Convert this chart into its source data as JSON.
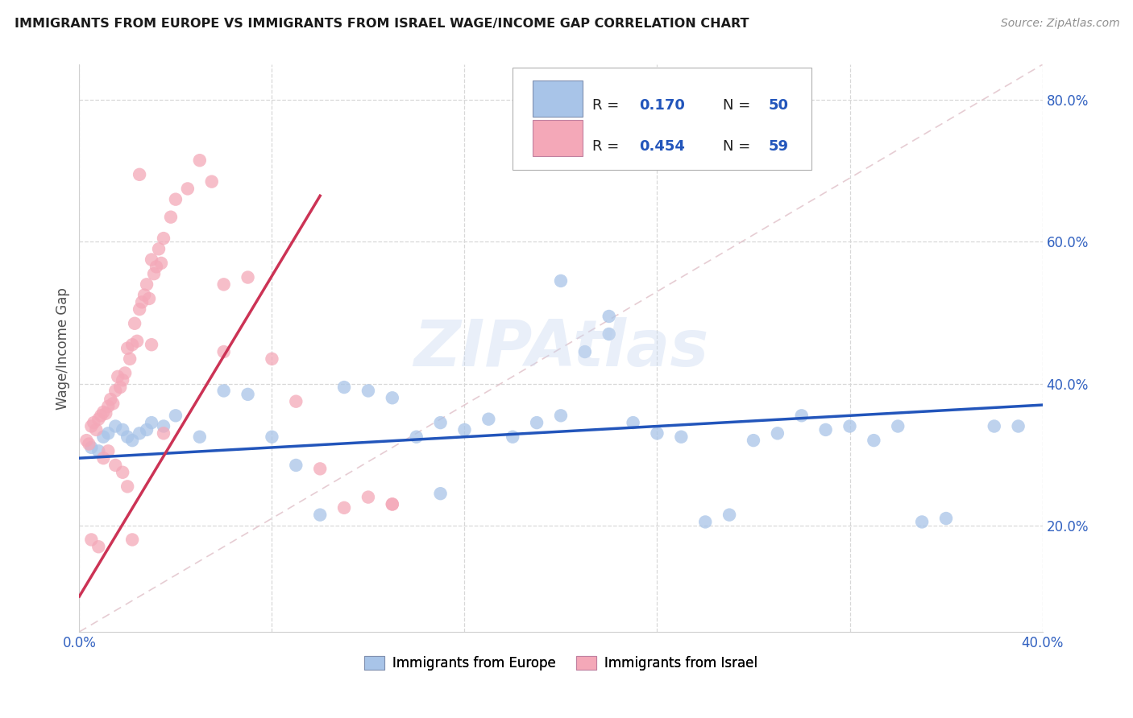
{
  "title": "IMMIGRANTS FROM EUROPE VS IMMIGRANTS FROM ISRAEL WAGE/INCOME GAP CORRELATION CHART",
  "source": "Source: ZipAtlas.com",
  "ylabel_label": "Wage/Income Gap",
  "x_min": 0.0,
  "x_max": 0.4,
  "y_min": 0.05,
  "y_max": 0.85,
  "x_tick_positions": [
    0.0,
    0.08,
    0.16,
    0.24,
    0.32,
    0.4
  ],
  "x_tick_labels": [
    "0.0%",
    "",
    "",
    "",
    "",
    "40.0%"
  ],
  "y_ticks_right": [
    0.2,
    0.4,
    0.6,
    0.8
  ],
  "y_tick_labels_right": [
    "20.0%",
    "40.0%",
    "60.0%",
    "80.0%"
  ],
  "legend_R1": "0.170",
  "legend_N1": "50",
  "legend_R2": "0.454",
  "legend_N2": "59",
  "color_blue": "#a8c4e8",
  "color_pink": "#f4a8b8",
  "line_blue": "#2255bb",
  "line_pink": "#cc3355",
  "blue_line_x0": 0.0,
  "blue_line_y0": 0.295,
  "blue_line_x1": 0.4,
  "blue_line_y1": 0.37,
  "pink_line_x0": 0.0,
  "pink_line_y0": 0.1,
  "pink_line_x1": 0.1,
  "pink_line_y1": 0.665,
  "watermark": "ZIPAtlas",
  "blue_scatter_x": [
    0.005,
    0.008,
    0.01,
    0.012,
    0.015,
    0.018,
    0.02,
    0.022,
    0.025,
    0.028,
    0.03,
    0.035,
    0.04,
    0.05,
    0.06,
    0.07,
    0.08,
    0.09,
    0.1,
    0.11,
    0.12,
    0.13,
    0.14,
    0.15,
    0.16,
    0.17,
    0.18,
    0.19,
    0.2,
    0.21,
    0.22,
    0.23,
    0.24,
    0.25,
    0.26,
    0.27,
    0.28,
    0.29,
    0.3,
    0.31,
    0.32,
    0.33,
    0.34,
    0.35,
    0.36,
    0.38,
    0.2,
    0.22,
    0.15,
    0.39
  ],
  "blue_scatter_y": [
    0.31,
    0.305,
    0.325,
    0.33,
    0.34,
    0.335,
    0.325,
    0.32,
    0.33,
    0.335,
    0.345,
    0.34,
    0.355,
    0.325,
    0.39,
    0.385,
    0.325,
    0.285,
    0.215,
    0.395,
    0.39,
    0.38,
    0.325,
    0.345,
    0.335,
    0.35,
    0.325,
    0.345,
    0.355,
    0.445,
    0.47,
    0.345,
    0.33,
    0.325,
    0.205,
    0.215,
    0.32,
    0.33,
    0.355,
    0.335,
    0.34,
    0.32,
    0.34,
    0.205,
    0.21,
    0.34,
    0.545,
    0.495,
    0.245,
    0.34
  ],
  "pink_scatter_x": [
    0.003,
    0.004,
    0.005,
    0.006,
    0.007,
    0.008,
    0.009,
    0.01,
    0.011,
    0.012,
    0.013,
    0.014,
    0.015,
    0.016,
    0.017,
    0.018,
    0.019,
    0.02,
    0.021,
    0.022,
    0.023,
    0.024,
    0.025,
    0.026,
    0.027,
    0.028,
    0.029,
    0.03,
    0.031,
    0.032,
    0.033,
    0.034,
    0.035,
    0.038,
    0.04,
    0.045,
    0.05,
    0.055,
    0.06,
    0.01,
    0.012,
    0.015,
    0.018,
    0.02,
    0.022,
    0.005,
    0.008,
    0.1,
    0.06,
    0.13,
    0.07,
    0.08,
    0.09,
    0.11,
    0.12,
    0.13,
    0.03,
    0.025,
    0.035
  ],
  "pink_scatter_y": [
    0.32,
    0.315,
    0.34,
    0.345,
    0.335,
    0.35,
    0.355,
    0.36,
    0.358,
    0.368,
    0.378,
    0.372,
    0.39,
    0.41,
    0.395,
    0.405,
    0.415,
    0.45,
    0.435,
    0.455,
    0.485,
    0.46,
    0.505,
    0.515,
    0.525,
    0.54,
    0.52,
    0.575,
    0.555,
    0.565,
    0.59,
    0.57,
    0.605,
    0.635,
    0.66,
    0.675,
    0.715,
    0.685,
    0.445,
    0.295,
    0.305,
    0.285,
    0.275,
    0.255,
    0.18,
    0.18,
    0.17,
    0.28,
    0.54,
    0.23,
    0.55,
    0.435,
    0.375,
    0.225,
    0.24,
    0.23,
    0.455,
    0.695,
    0.33
  ]
}
